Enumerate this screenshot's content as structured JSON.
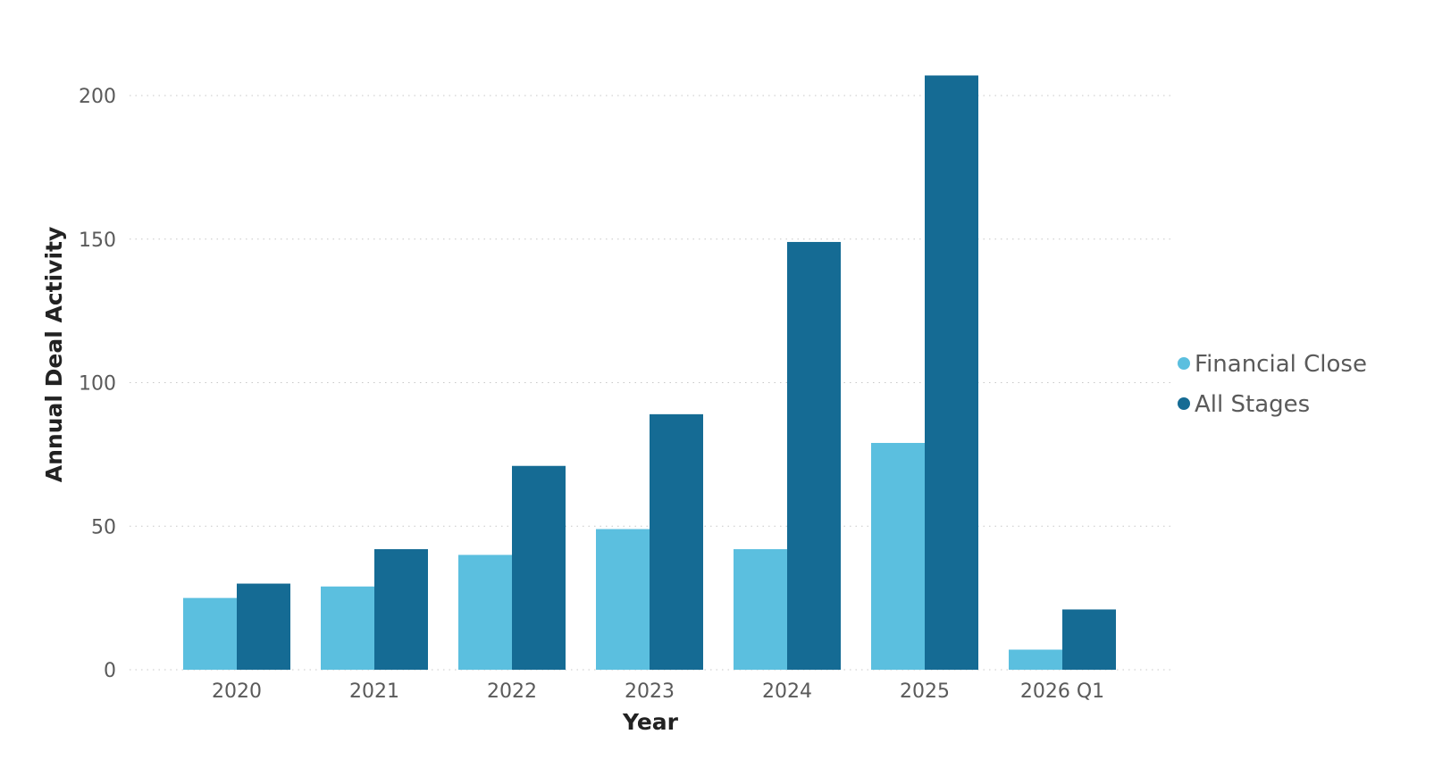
{
  "chart_data": {
    "type": "bar",
    "xlabel": "Year",
    "ylabel": "Annual Deal Activity",
    "categories": [
      "2020",
      "2021",
      "2022",
      "2023",
      "2024",
      "2025",
      "2026 Q1"
    ],
    "series": [
      {
        "name": "Financial Close",
        "color": "#5bbfdf",
        "values": [
          25,
          29,
          40,
          49,
          42,
          79,
          7
        ]
      },
      {
        "name": "All Stages",
        "color": "#156b94",
        "values": [
          30,
          42,
          71,
          89,
          149,
          207,
          21
        ]
      }
    ],
    "ylim": [
      0,
      207
    ],
    "yticks": [
      0,
      50,
      100,
      150,
      200
    ],
    "grid": true,
    "legend_position": "right"
  }
}
